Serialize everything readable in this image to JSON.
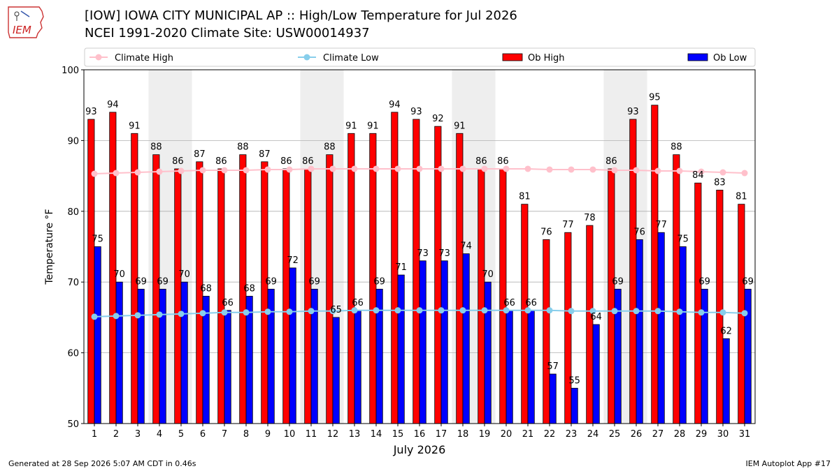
{
  "title_line1": "[IOW] IOWA CITY MUNICIPAL AP :: High/Low Temperature for Jul 2026",
  "title_line2": "NCEI 1991-2020 Climate Site: USW00014937",
  "logo_text": "IEM",
  "footer_left": "Generated at 28 Sep 2026 5:07 AM CDT in 0.46s",
  "footer_right": "IEM Autoplot App #17",
  "chart_data": {
    "type": "bar",
    "xlabel": "July 2026",
    "ylabel": "Temperature °F",
    "ylim": [
      50,
      100
    ],
    "yticks": [
      50,
      60,
      70,
      80,
      90,
      100
    ],
    "grid": true,
    "legend_position": "top",
    "weekend_shading": [
      [
        4,
        5
      ],
      [
        11,
        12
      ],
      [
        18,
        19
      ],
      [
        25,
        26
      ]
    ],
    "categories": [
      1,
      2,
      3,
      4,
      5,
      6,
      7,
      8,
      9,
      10,
      11,
      12,
      13,
      14,
      15,
      16,
      17,
      18,
      19,
      20,
      21,
      22,
      23,
      24,
      25,
      26,
      27,
      28,
      29,
      30,
      31
    ],
    "series": [
      {
        "name": "Ob High",
        "kind": "bar",
        "color": "#ff0000",
        "values": [
          93,
          94,
          91,
          88,
          86,
          87,
          86,
          88,
          87,
          86,
          86,
          88,
          91,
          91,
          94,
          93,
          92,
          91,
          86,
          86,
          81,
          76,
          77,
          78,
          86,
          93,
          95,
          88,
          84,
          83,
          81
        ]
      },
      {
        "name": "Ob Low",
        "kind": "bar",
        "color": "#0000ff",
        "values": [
          75,
          70,
          69,
          69,
          70,
          68,
          66,
          68,
          69,
          72,
          69,
          65,
          66,
          69,
          71,
          73,
          73,
          74,
          70,
          66,
          66,
          57,
          55,
          64,
          69,
          76,
          77,
          75,
          69,
          62,
          69
        ]
      },
      {
        "name": "Climate High",
        "kind": "line",
        "color": "#ffc0cb",
        "values": [
          85.3,
          85.4,
          85.5,
          85.6,
          85.7,
          85.8,
          85.8,
          85.8,
          85.9,
          85.9,
          86.0,
          86.0,
          86.0,
          86.0,
          86.0,
          86.0,
          86.0,
          86.0,
          86.0,
          86.0,
          86.0,
          85.9,
          85.9,
          85.9,
          85.8,
          85.8,
          85.7,
          85.7,
          85.6,
          85.5,
          85.4
        ]
      },
      {
        "name": "Climate Low",
        "kind": "line",
        "color": "#87ceeb",
        "values": [
          65.1,
          65.2,
          65.3,
          65.4,
          65.5,
          65.6,
          65.7,
          65.7,
          65.8,
          65.8,
          65.9,
          65.9,
          66.0,
          66.0,
          66.0,
          66.0,
          66.0,
          66.0,
          66.0,
          66.0,
          66.0,
          66.0,
          65.9,
          65.9,
          65.9,
          65.9,
          65.9,
          65.8,
          65.7,
          65.7,
          65.6
        ]
      }
    ],
    "legend_order": [
      "Climate High",
      "Climate Low",
      "Ob High",
      "Ob Low"
    ]
  }
}
